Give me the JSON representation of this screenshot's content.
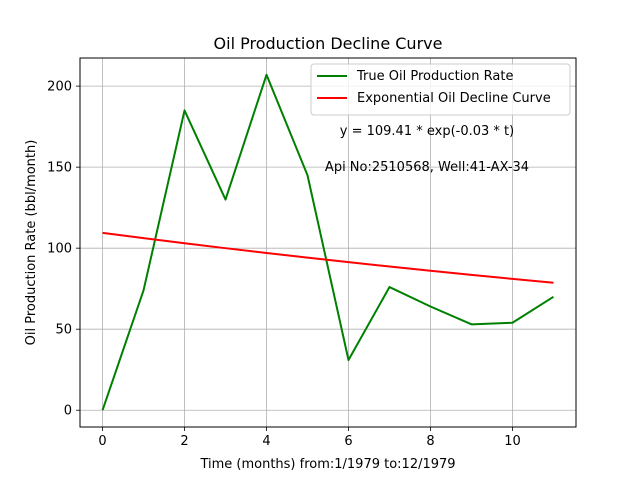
{
  "chart_data": {
    "type": "line",
    "title": "Oil Production Decline Curve",
    "xlabel": "Time (months) from:1/1979 to:12/1979",
    "ylabel": "Oil Production Rate (bbl/month)",
    "xlim": [
      -0.55,
      11.55
    ],
    "ylim": [
      -10.35,
      217.35
    ],
    "xticks": [
      0,
      2,
      4,
      6,
      8,
      10
    ],
    "yticks": [
      0,
      50,
      100,
      150,
      200
    ],
    "grid": true,
    "legend_position": "top-right",
    "x": [
      0,
      1,
      2,
      3,
      4,
      5,
      6,
      7,
      8,
      9,
      10,
      11
    ],
    "series": [
      {
        "name": "True Oil Production Rate",
        "color": "#008000",
        "values": [
          0,
          74,
          185,
          130,
          207,
          145,
          31,
          76,
          64,
          53,
          54,
          70
        ]
      },
      {
        "name": "Exponential Oil Decline Curve",
        "color": "#ff0000",
        "values": [
          109.41,
          106.18,
          103.04,
          99.99,
          97.04,
          94.17,
          91.38,
          88.68,
          86.06,
          83.52,
          81.05,
          78.65
        ]
      }
    ],
    "annotations": [
      "y = 109.41 * exp(-0.03 * t)",
      "Api No:2510568, Well:41-AX-34"
    ]
  }
}
